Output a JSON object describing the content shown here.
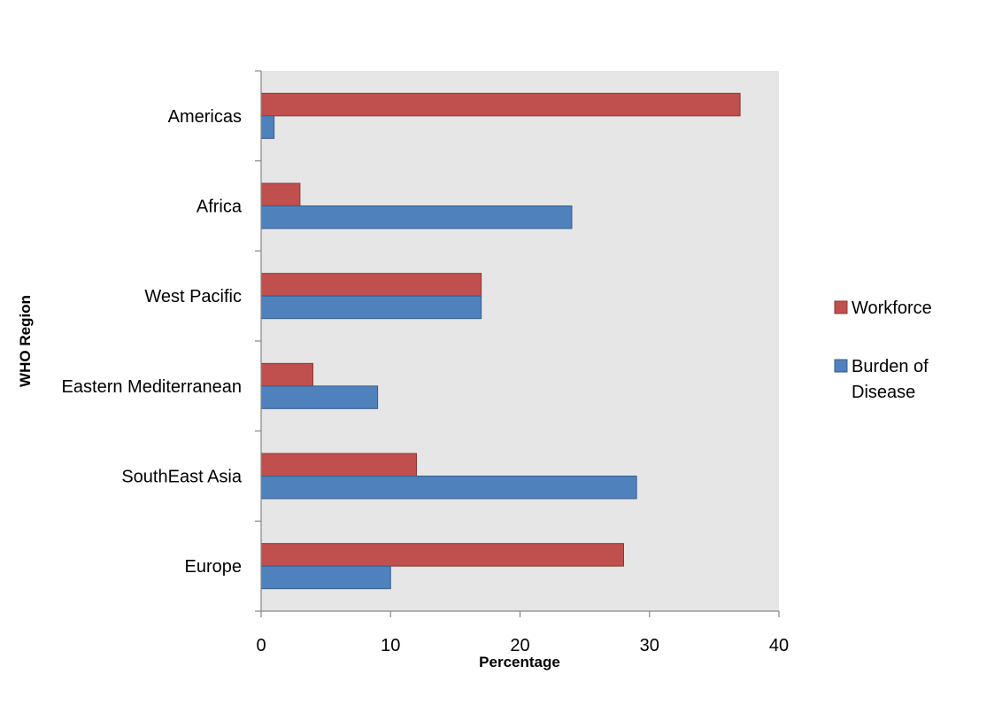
{
  "chart_data": {
    "type": "bar",
    "orientation": "horizontal",
    "categories": [
      "Americas",
      "Africa",
      "West Pacific",
      "Eastern Mediterranean",
      "SouthEast Asia",
      "Europe"
    ],
    "series": [
      {
        "name": "Workforce",
        "color": "#c0504d",
        "values": [
          37,
          3,
          17,
          4,
          12,
          28
        ]
      },
      {
        "name": "Burden of Disease",
        "color": "#4f81bd",
        "values": [
          1,
          24,
          17,
          9,
          29,
          10
        ]
      }
    ],
    "legend_lines": {
      "workforce": [
        "Workforce"
      ],
      "burden": [
        "Burden of",
        "Disease"
      ]
    },
    "xlabel": "Percentage",
    "ylabel": "WHO Region",
    "xlim": [
      0,
      40
    ],
    "xticks": [
      0,
      10,
      20,
      30,
      40
    ],
    "xtick_labels": [
      "0",
      "10",
      "20",
      "30",
      "40"
    ],
    "grid": false,
    "plot_background": "#e6e6e6",
    "legend_position": "right"
  }
}
